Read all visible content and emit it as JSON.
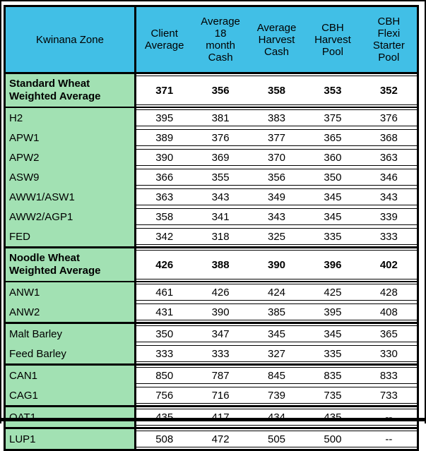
{
  "table": {
    "header": {
      "zone_label": "Kwinana Zone",
      "columns": [
        "Client\nAverage",
        "Average\n18\nmonth\nCash",
        "Average\nHarvest\nCash",
        "CBH\nHarvest\nPool",
        "CBH\nFlexi\nStarter\nPool"
      ]
    },
    "groups": [
      {
        "thin_bottom": true,
        "rows": [
          {
            "label": "Standard Wheat\nWeighted Average",
            "tall": true,
            "bold": true,
            "values": [
              "371",
              "356",
              "358",
              "353",
              "352"
            ]
          }
        ]
      },
      {
        "rows": [
          {
            "label": "H2",
            "values": [
              "395",
              "381",
              "383",
              "375",
              "376"
            ]
          },
          {
            "label": "APW1",
            "values": [
              "389",
              "376",
              "377",
              "365",
              "368"
            ]
          },
          {
            "label": "APW2",
            "values": [
              "390",
              "369",
              "370",
              "360",
              "363"
            ]
          },
          {
            "label": "ASW9",
            "values": [
              "366",
              "355",
              "356",
              "350",
              "346"
            ]
          },
          {
            "label": "AWW1/ASW1",
            "values": [
              "363",
              "343",
              "349",
              "345",
              "343"
            ]
          },
          {
            "label": "AWW2/AGP1",
            "values": [
              "358",
              "341",
              "343",
              "345",
              "339"
            ]
          },
          {
            "label": "FED",
            "values": [
              "342",
              "318",
              "325",
              "335",
              "333"
            ]
          }
        ]
      },
      {
        "thin_bottom": true,
        "rows": [
          {
            "label": "Noodle Wheat\nWeighted Average",
            "tall": true,
            "bold": true,
            "values": [
              "426",
              "388",
              "390",
              "396",
              "402"
            ]
          }
        ]
      },
      {
        "rows": [
          {
            "label": "ANW1",
            "values": [
              "461",
              "426",
              "424",
              "425",
              "428"
            ]
          },
          {
            "label": "ANW2",
            "values": [
              "431",
              "390",
              "385",
              "395",
              "408"
            ]
          }
        ]
      },
      {
        "rows": [
          {
            "label": "Malt Barley",
            "values": [
              "350",
              "347",
              "345",
              "345",
              "365"
            ]
          },
          {
            "label": "Feed Barley",
            "values": [
              "333",
              "333",
              "327",
              "335",
              "330"
            ]
          }
        ]
      },
      {
        "rows": [
          {
            "label": "CAN1",
            "values": [
              "850",
              "787",
              "845",
              "835",
              "833"
            ]
          },
          {
            "label": "CAG1",
            "values": [
              "756",
              "716",
              "739",
              "735",
              "733"
            ]
          }
        ]
      },
      {
        "rows": [
          {
            "label": "OAT1",
            "values": [
              "435",
              "417",
              "434",
              "435",
              "--"
            ]
          }
        ]
      },
      {
        "rows": [
          {
            "label": "LUP1",
            "values": [
              "508",
              "472",
              "505",
              "500",
              "--"
            ]
          }
        ]
      }
    ],
    "colors": {
      "header_bg": "#41bfe6",
      "label_bg": "#a2e1b3",
      "border": "#000000",
      "row_bg": "#ffffff"
    }
  }
}
